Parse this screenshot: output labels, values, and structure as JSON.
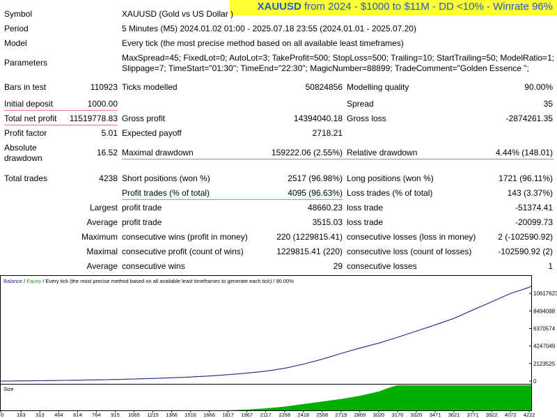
{
  "banner": {
    "symbol": "XAUUSD",
    "text": "from 2024 - $1000 to $11M - DD <10% - Winrate 96%"
  },
  "report": {
    "symbol_label": "Symbol",
    "symbol_value": "XAUUSD (Gold vs US Dollar )",
    "period_label": "Period",
    "period_value": "5 Minutes (M5) 2024.01.02 01:00 - 2025.07.18 23:55 (2024.01.01 - 2025.07.20)",
    "model_label": "Model",
    "model_value": "Every tick (the most precise method based on all available least timeframes)",
    "parameters_label": "Parameters",
    "parameters_line1": "MaxSpread=45; FixedLot=0; AutoLot=3; TakeProfit=500; StopLoss=500; Trailing=10; StartTrailing=50; ModelRatio=1;",
    "parameters_line2": "Slippage=7; TimeStart=\"01:30\"; TimeEnd=\"22:30\"; MagicNumber=88899; TradeComment=\"Golden Essence \";",
    "bars_label": "Bars in test",
    "bars_value": "110923",
    "ticks_label": "Ticks modelled",
    "ticks_value": "50824856",
    "quality_label": "Modelling quality",
    "quality_value": "90.00%",
    "deposit_label": "Initial deposit",
    "deposit_value": "1000.00",
    "spread_label": "Spread",
    "spread_value": "35",
    "netprofit_label": "Total net profit",
    "netprofit_value": "11519778.83",
    "grossprofit_label": "Gross profit",
    "grossprofit_value": "14394040.18",
    "grossloss_label": "Gross loss",
    "grossloss_value": "-2874261.35",
    "pf_label": "Profit factor",
    "pf_value": "5.01",
    "payoff_label": "Expected payoff",
    "payoff_value": "2718.21",
    "absdd_label1": "Absolute",
    "absdd_label2": "drawdown",
    "absdd_value": "16.52",
    "maxdd_label": "Maximal drawdown",
    "maxdd_value": "159222.06 (2.55%)",
    "reldd_label": "Relative drawdown",
    "reldd_value": "4.44% (148.01)",
    "trades_label": "Total trades",
    "trades_value": "4238",
    "short_label": "Short positions (won %)",
    "short_value": "2517 (96.98%)",
    "long_label": "Long positions (won %)",
    "long_value": "1721 (96.11%)",
    "profittrades_label": "Profit trades (% of total)",
    "profittrades_value": "4095 (96.63%)",
    "losstrades_label": "Loss trades (% of total)",
    "losstrades_value": "143 (3.37%)",
    "largest_label": "Largest",
    "largest_profit_label": "profit trade",
    "largest_profit_value": "48660.23",
    "largest_loss_label": "loss trade",
    "largest_loss_value": "-51374.41",
    "average_label": "Average",
    "average_profit_label": "profit trade",
    "average_profit_value": "3515.03",
    "average_loss_label": "loss trade",
    "average_loss_value": "-20099.73",
    "maximum_label": "Maximum",
    "maxwins_label": "consecutive wins (profit in money)",
    "maxwins_value": "220 (1229815.41)",
    "maxlosses_label": "consecutive losses (loss in money)",
    "maxlosses_value": "2 (-102590.92)",
    "maximal_label": "Maximal",
    "maxprofit_label": "consecutive profit (count of wins)",
    "maxprofit_value": "1229815.41 (220)",
    "maxloss_label": "consecutive loss (count of losses)",
    "maxloss_value": "-102590.92 (2)",
    "average2_label": "Average",
    "avgwins_label": "consecutive wins",
    "avgwins_value": "29",
    "avglosses_label": "consecutive losses",
    "avglosses_value": "1"
  },
  "chart_legend": {
    "balance": "Balance",
    "sep1": " / ",
    "equity": "Equity",
    "rest": " / Every tick (the most precise method based on all available least timeframes to generate each tick) / 90.00%",
    "size_label": "Size"
  },
  "colors": {
    "balance": "#1f1f9f",
    "equity": "#2ca02c",
    "size": "#00b000",
    "banner_bg": "#ffff33",
    "banner_text": "#1f5fbf",
    "underline": "#e8827a"
  },
  "chart_data": {
    "type": "line",
    "title": "",
    "xlabel": "",
    "ylabel": "",
    "x_ticks": [
      "0",
      "163",
      "313",
      "464",
      "614",
      "764",
      "915",
      "1065",
      "1215",
      "1366",
      "1516",
      "1666",
      "1817",
      "1967",
      "2117",
      "2268",
      "2418",
      "2568",
      "2719",
      "2869",
      "3020",
      "3170",
      "3320",
      "3471",
      "3621",
      "3771",
      "3922",
      "4072",
      "4222"
    ],
    "y_ticks": [
      "0",
      "2123525",
      "4247049",
      "6370574",
      "8494098",
      "10617623"
    ],
    "xlim": [
      0,
      4238
    ],
    "ylim": [
      0,
      12400000
    ],
    "series": [
      {
        "name": "Balance",
        "x": [
          0,
          163,
          313,
          464,
          614,
          764,
          915,
          1065,
          1215,
          1366,
          1516,
          1666,
          1817,
          1967,
          2117,
          2268,
          2418,
          2568,
          2719,
          2869,
          3020,
          3170,
          3320,
          3471,
          3621,
          3771,
          3922,
          4072,
          4222,
          4238
        ],
        "y": [
          1000,
          20000,
          45000,
          75000,
          110000,
          150000,
          195000,
          250000,
          320000,
          400000,
          500000,
          620000,
          780000,
          960000,
          1200000,
          1550000,
          2050000,
          2650000,
          3350000,
          4000000,
          4600000,
          5300000,
          6050000,
          6800000,
          7600000,
          8600000,
          9600000,
          10600000,
          11350000,
          11520000
        ]
      }
    ],
    "size_series": {
      "name": "Size",
      "x": [
        0,
        1817,
        1967,
        2117,
        2268,
        2418,
        2568,
        2719,
        2869,
        3020,
        3100,
        3170,
        4238
      ],
      "y": [
        0,
        0,
        0.03,
        0.08,
        0.15,
        0.25,
        0.35,
        0.45,
        0.58,
        0.75,
        0.9,
        1,
        1
      ]
    }
  }
}
